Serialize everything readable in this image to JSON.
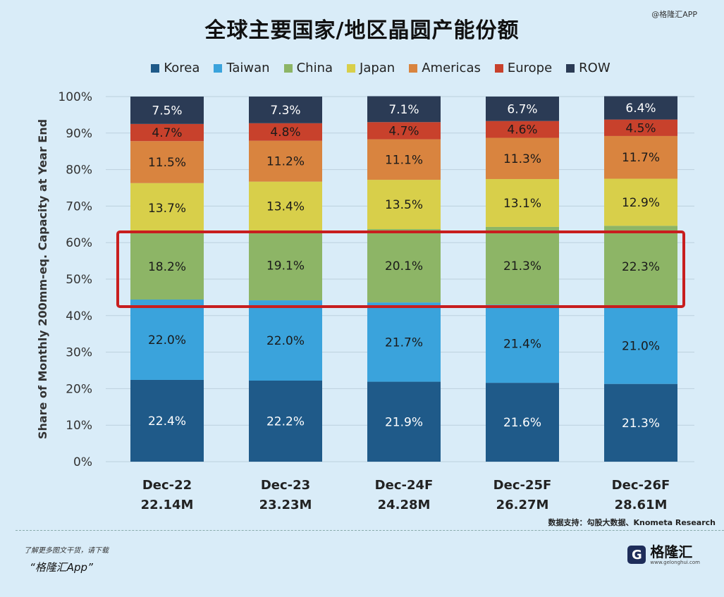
{
  "watermark": "@格隆汇APP",
  "title": "全球主要国家/地区晶圆产能份额",
  "source": "数据支持：勾股大数据、Knometa Research",
  "footer": {
    "hint": "了解更多图文干货，请下载",
    "app": "“格隆汇App”",
    "brand_name": "格隆汇",
    "brand_site": "www.gelonghui.com",
    "brand_logo": "G"
  },
  "colors": {
    "Korea": "#1f5a89",
    "Taiwan": "#3aa3dc",
    "China": "#8db566",
    "Japan": "#d8cf4a",
    "Americas": "#d9843f",
    "Europe": "#c8412c",
    "ROW": "#2b3b55",
    "highlight": "#c81e1e"
  },
  "chart_data": {
    "type": "bar",
    "stacked": true,
    "title": "全球主要国家/地区晶圆产能份额",
    "ylabel": "Share of Monthly 200mm-eq. Capacity at Year End",
    "xlabel": "",
    "ylim": [
      0,
      100
    ],
    "yticks": [
      "0%",
      "10%",
      "20%",
      "30%",
      "40%",
      "50%",
      "60%",
      "70%",
      "80%",
      "90%",
      "100%"
    ],
    "categories": [
      "Dec-22",
      "Dec-23",
      "Dec-24F",
      "Dec-25F",
      "Dec-26F"
    ],
    "category_totals": [
      "22.14M",
      "23.23M",
      "24.28M",
      "26.27M",
      "28.61M"
    ],
    "legend_position": "top",
    "highlight_series": "China",
    "series": [
      {
        "name": "Korea",
        "values": [
          22.4,
          22.2,
          21.9,
          21.6,
          21.3
        ],
        "labels": [
          "22.4%",
          "22.2%",
          "21.9%",
          "21.6%",
          "21.3%"
        ]
      },
      {
        "name": "Taiwan",
        "values": [
          22.0,
          22.0,
          21.7,
          21.4,
          21.0
        ],
        "labels": [
          "22.0%",
          "22.0%",
          "21.7%",
          "21.4%",
          "21.0%"
        ]
      },
      {
        "name": "China",
        "values": [
          18.2,
          19.1,
          20.1,
          21.3,
          22.3
        ],
        "labels": [
          "18.2%",
          "19.1%",
          "20.1%",
          "21.3%",
          "22.3%"
        ]
      },
      {
        "name": "Japan",
        "values": [
          13.7,
          13.4,
          13.5,
          13.1,
          12.9
        ],
        "labels": [
          "13.7%",
          "13.4%",
          "13.5%",
          "13.1%",
          "12.9%"
        ]
      },
      {
        "name": "Americas",
        "values": [
          11.5,
          11.2,
          11.1,
          11.3,
          11.7
        ],
        "labels": [
          "11.5%",
          "11.2%",
          "11.1%",
          "11.3%",
          "11.7%"
        ]
      },
      {
        "name": "Europe",
        "values": [
          4.7,
          4.8,
          4.7,
          4.6,
          4.5
        ],
        "labels": [
          "4.7%",
          "4.8%",
          "4.7%",
          "4.6%",
          "4.5%"
        ]
      },
      {
        "name": "ROW",
        "values": [
          7.5,
          7.3,
          7.1,
          6.7,
          6.4
        ],
        "labels": [
          "7.5%",
          "7.3%",
          "7.1%",
          "6.7%",
          "6.4%"
        ]
      }
    ]
  }
}
